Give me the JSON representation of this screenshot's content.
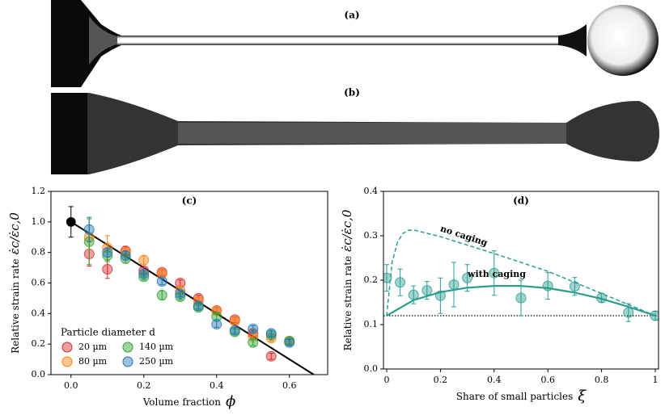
{
  "panels": {
    "a": "(a)",
    "b": "(b)"
  },
  "chart_data": [
    {
      "type": "scatter",
      "title": "(c)",
      "xlabel": "Volume fraction",
      "x_symbol": "ϕ",
      "ylabel": "Relative strain rate",
      "y_symbol": "ε̇c/ε̇c,0",
      "legend_title": "Particle diameter d",
      "legend": "lower left",
      "xlim": [
        -0.055,
        0.705
      ],
      "ylim": [
        0,
        1.2
      ],
      "xticks": [
        {
          "value": 0,
          "label": "0.0"
        },
        0.2,
        0.4,
        0.6
      ],
      "yticks": [
        {
          "value": 0,
          "label": "0.0"
        },
        0.2,
        0.4,
        0.6,
        0.8,
        {
          "value": 1,
          "label": "1.0"
        },
        1.2
      ],
      "grid": false,
      "series": [
        {
          "name": "20 µm",
          "color": "#d62728",
          "x": [
            0.05,
            0.1,
            0.15,
            0.2,
            0.25,
            0.3,
            0.35,
            0.4,
            0.45,
            0.5,
            0.55
          ],
          "values": [
            0.79,
            0.69,
            0.81,
            0.68,
            0.67,
            0.6,
            0.5,
            0.42,
            0.36,
            0.27,
            0.12
          ],
          "errors": [
            0.08,
            0.06,
            0.03,
            0.02,
            0.02,
            0.02,
            0.02,
            0.02,
            0.02,
            0.02,
            0.02
          ]
        },
        {
          "name": "80 µm",
          "color": "#ff7f0e",
          "x": [
            0.05,
            0.1,
            0.15,
            0.2,
            0.25,
            0.3,
            0.35,
            0.4,
            0.45,
            0.5,
            0.55,
            0.6
          ],
          "values": [
            0.9,
            0.83,
            0.8,
            0.75,
            0.66,
            0.55,
            0.48,
            0.42,
            0.35,
            0.25,
            0.24,
            0.22
          ],
          "errors": [
            0.08,
            0.08,
            0.03,
            0.03,
            0.02,
            0.02,
            0.02,
            0.02,
            0.02,
            0.02,
            0.02,
            0.02
          ]
        },
        {
          "name": "140 µm",
          "color": "#2ca02c",
          "x": [
            0.05,
            0.1,
            0.15,
            0.2,
            0.25,
            0.3,
            0.35,
            0.4,
            0.45,
            0.5,
            0.55,
            0.6
          ],
          "values": [
            0.87,
            0.78,
            0.76,
            0.64,
            0.52,
            0.51,
            0.44,
            0.38,
            0.28,
            0.21,
            0.26,
            0.22
          ],
          "errors": [
            0.15,
            0.04,
            0.03,
            0.02,
            0.03,
            0.02,
            0.02,
            0.02,
            0.02,
            0.02,
            0.03,
            0.02
          ]
        },
        {
          "name": "250 µm",
          "color": "#1f77b4",
          "x": [
            0.05,
            0.1,
            0.15,
            0.2,
            0.25,
            0.3,
            0.35,
            0.4,
            0.45,
            0.5,
            0.55,
            0.6
          ],
          "values": [
            0.95,
            0.8,
            0.78,
            0.66,
            0.61,
            0.53,
            0.45,
            0.33,
            0.29,
            0.3,
            0.27,
            0.21
          ],
          "errors": [
            0.08,
            0.03,
            0.03,
            0.02,
            0.02,
            0.02,
            0.02,
            0.02,
            0.02,
            0.02,
            0.02,
            0.02
          ]
        }
      ],
      "reference": {
        "x": 0,
        "y": 1.0,
        "error": 0.1,
        "color": "#000000"
      },
      "fit": {
        "x": [
          0,
          0.667
        ],
        "y": [
          1.0,
          0
        ],
        "color": "#000000"
      }
    },
    {
      "type": "scatter",
      "title": "(d)",
      "xlabel": "Share of small particles",
      "x_symbol": "ξ",
      "ylabel": "Relative strain rate",
      "y_symbol": "ε̇c/ε̇c,0",
      "xlim": [
        -0.012,
        1.012
      ],
      "ylim": [
        0,
        0.4
      ],
      "xticks": [
        0,
        0.2,
        0.4,
        0.6,
        0.8,
        1
      ],
      "yticks": [
        {
          "value": 0,
          "label": "0.0"
        },
        0.1,
        0.2,
        0.3,
        0.4
      ],
      "grid": false,
      "series": [
        {
          "color": "#2a9d8f",
          "x": [
            0,
            0.05,
            0.1,
            0.15,
            0.2,
            0.25,
            0.3,
            0.4,
            0.5,
            0.6,
            0.7,
            0.8,
            0.9,
            1.0
          ],
          "values": [
            0.205,
            0.195,
            0.167,
            0.177,
            0.165,
            0.19,
            0.205,
            0.216,
            0.16,
            0.187,
            0.186,
            0.16,
            0.127,
            0.12
          ],
          "errors": [
            0.03,
            0.03,
            0.02,
            0.02,
            0.04,
            0.05,
            0.03,
            0.05,
            0.04,
            0.03,
            0.02,
            0.01,
            0.02,
            0.01
          ]
        }
      ],
      "curves": [
        {
          "name": "no caging",
          "color": "#2a9d8f",
          "dashed": true,
          "x": [
            0,
            0.01,
            0.02,
            0.04,
            0.06,
            0.08,
            0.1,
            0.2,
            0.4,
            0.6,
            0.8,
            1.0
          ],
          "values": [
            0.12,
            0.18,
            0.24,
            0.285,
            0.305,
            0.312,
            0.313,
            0.298,
            0.26,
            0.22,
            0.17,
            0.12
          ]
        },
        {
          "name": "with caging",
          "color": "#2a9d8f",
          "dashed": false,
          "x": [
            0,
            0.1,
            0.2,
            0.3,
            0.4,
            0.5,
            0.6,
            0.7,
            0.8,
            0.9,
            1.0
          ],
          "values": [
            0.12,
            0.155,
            0.173,
            0.183,
            0.187,
            0.187,
            0.182,
            0.172,
            0.158,
            0.14,
            0.12
          ]
        }
      ],
      "baseline": 0.12
    }
  ]
}
